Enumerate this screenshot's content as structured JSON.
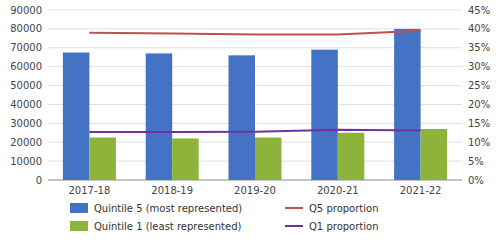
{
  "chart_data": {
    "type": "bar",
    "categories": [
      "2017-18",
      "2018-19",
      "2019-20",
      "2020-21",
      "2021-22"
    ],
    "series": [
      {
        "name": "Quintile 5 (most represented)",
        "type": "bar",
        "color": "#4472C4",
        "values": [
          67500,
          67000,
          66000,
          69000,
          80000
        ]
      },
      {
        "name": "Quintile 1 (least represented)",
        "type": "bar",
        "color": "#8DB33A",
        "values": [
          22500,
          22000,
          22500,
          25000,
          27000
        ]
      },
      {
        "name": "Q5 proportion",
        "type": "line",
        "axis": "y2",
        "color": "#C0504D",
        "values": [
          0.39,
          0.388,
          0.385,
          0.385,
          0.395
        ]
      },
      {
        "name": "Q1 proportion",
        "type": "line",
        "axis": "y2",
        "color": "#7030A0",
        "values": [
          0.127,
          0.127,
          0.128,
          0.133,
          0.131
        ]
      }
    ],
    "ylim": [
      0,
      90000
    ],
    "yticks": [
      0,
      10000,
      20000,
      30000,
      40000,
      50000,
      60000,
      70000,
      80000,
      90000
    ],
    "y2lim": [
      0,
      0.45
    ],
    "y2ticks": [
      {
        "value": 0,
        "label": "0%"
      },
      {
        "value": 0.05,
        "label": "5%"
      },
      {
        "value": 0.1,
        "label": "10%"
      },
      {
        "value": 0.15,
        "label": "15%"
      },
      {
        "value": 0.2,
        "label": "20%"
      },
      {
        "value": 0.25,
        "label": "25%"
      },
      {
        "value": 0.3,
        "label": "30%"
      },
      {
        "value": 0.35,
        "label": "35%"
      },
      {
        "value": 0.4,
        "label": "40%"
      },
      {
        "value": 0.45,
        "label": "45%"
      }
    ],
    "grid": true,
    "legend": "bottom"
  }
}
